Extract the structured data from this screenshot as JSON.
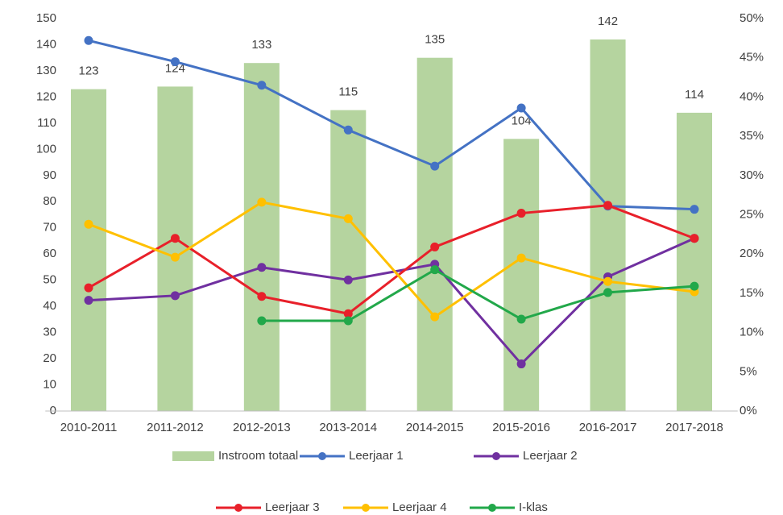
{
  "chart_data": {
    "type": "combo",
    "categories": [
      "2010-2011",
      "2011-2012",
      "2012-2013",
      "2013-2014",
      "2014-2015",
      "2015-2016",
      "2016-2017",
      "2017-2018"
    ],
    "ylim": [
      0,
      150
    ],
    "yticks": [
      0,
      10,
      20,
      30,
      40,
      50,
      60,
      70,
      80,
      90,
      100,
      110,
      120,
      130,
      140,
      150
    ],
    "y2lim": [
      0,
      50
    ],
    "y2ticks": [
      {
        "value": 0,
        "label": "0%"
      },
      {
        "value": 5,
        "label": "5%"
      },
      {
        "value": 10,
        "label": "10%"
      },
      {
        "value": 15,
        "label": "15%"
      },
      {
        "value": 20,
        "label": "20%"
      },
      {
        "value": 25,
        "label": "25%"
      },
      {
        "value": 30,
        "label": "30%"
      },
      {
        "value": 35,
        "label": "35%"
      },
      {
        "value": 40,
        "label": "40%"
      },
      {
        "value": 45,
        "label": "45%"
      },
      {
        "value": 50,
        "label": "50%"
      }
    ],
    "grid": false,
    "legend": "bottom",
    "series": [
      {
        "name": "Instroom totaal",
        "type": "bar",
        "axis": "y",
        "color": "#b5d49f",
        "values": [
          123,
          124,
          133,
          115,
          135,
          104,
          142,
          114
        ]
      },
      {
        "name": "Leerjaar 1",
        "type": "line",
        "axis": "y2",
        "color": "#4472c4",
        "values": [
          47.2,
          44.5,
          41.5,
          35.8,
          31.2,
          38.6,
          26.1,
          25.7
        ]
      },
      {
        "name": "Leerjaar 2",
        "type": "line",
        "axis": "y2",
        "color": "#7030a0",
        "values": [
          14.1,
          14.7,
          18.3,
          16.7,
          18.7,
          6.0,
          17.1,
          22.0
        ]
      },
      {
        "name": "Leerjaar 3",
        "type": "line",
        "axis": "y2",
        "color": "#e8202a",
        "values": [
          15.7,
          22.0,
          14.6,
          12.4,
          20.9,
          25.2,
          26.2,
          22.0
        ]
      },
      {
        "name": "Leerjaar 4",
        "type": "line",
        "axis": "y2",
        "color": "#ffc000",
        "values": [
          23.8,
          19.6,
          26.6,
          24.5,
          12.0,
          19.5,
          16.5,
          15.2
        ]
      },
      {
        "name": "I-klas",
        "type": "line",
        "axis": "y2",
        "color": "#22a84a",
        "values": [
          null,
          null,
          11.5,
          11.5,
          18.0,
          11.7,
          15.1,
          15.9
        ]
      }
    ]
  }
}
